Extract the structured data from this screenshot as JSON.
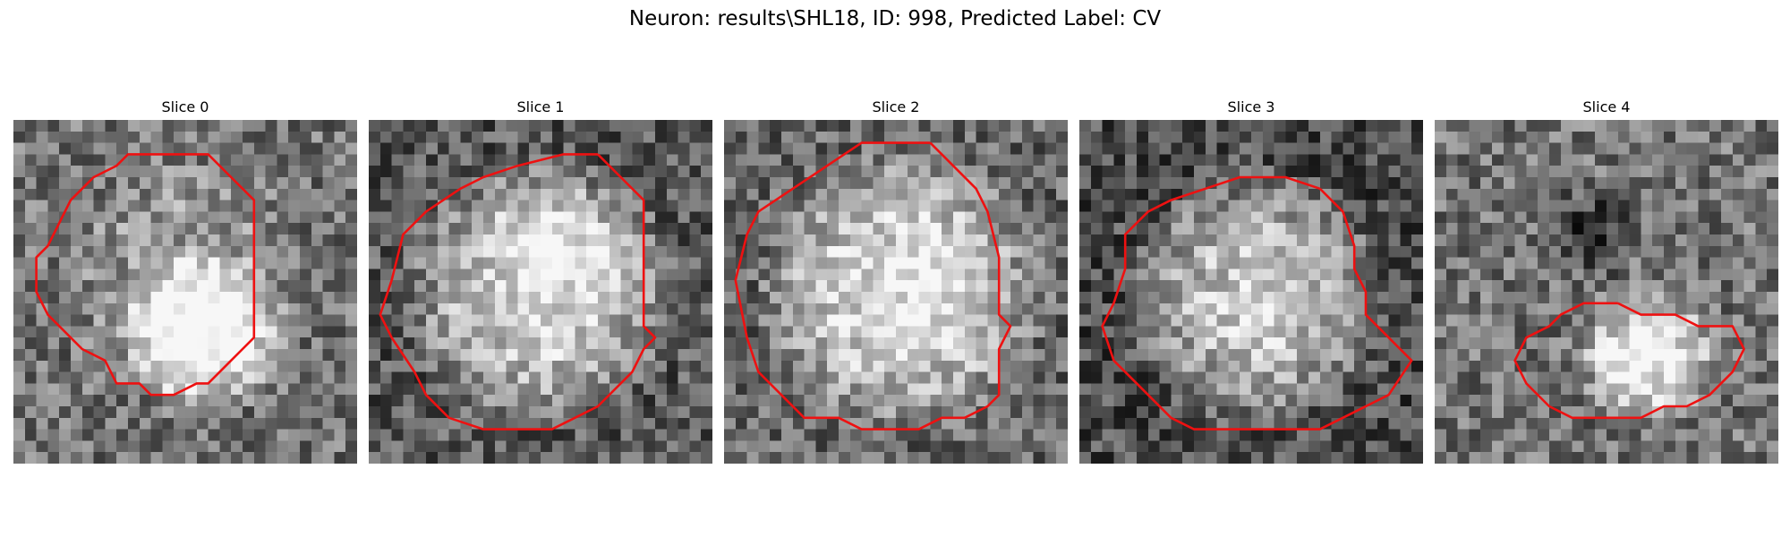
{
  "title": "Neuron: results\\SHL18, ID: 998, Predicted Label: CV",
  "slices": [
    {
      "label": "Slice 0",
      "outline": [
        [
          15,
          3
        ],
        [
          17,
          3
        ],
        [
          19,
          5
        ],
        [
          21,
          7
        ],
        [
          21,
          10
        ],
        [
          21,
          19
        ],
        [
          20,
          20
        ],
        [
          17,
          23
        ],
        [
          16,
          23
        ],
        [
          14,
          24
        ],
        [
          12,
          24
        ],
        [
          11,
          23
        ],
        [
          9,
          23
        ],
        [
          8,
          21
        ],
        [
          6,
          20
        ],
        [
          3,
          17
        ],
        [
          2,
          15
        ],
        [
          2,
          12
        ],
        [
          3,
          11
        ],
        [
          4,
          9
        ],
        [
          5,
          7
        ],
        [
          6,
          6
        ],
        [
          7,
          5
        ],
        [
          9,
          4
        ],
        [
          10,
          3
        ],
        [
          12,
          3
        ],
        [
          15,
          3
        ]
      ],
      "blobs": [
        [
          0.55,
          0.62,
          0.26,
          0.9
        ],
        [
          0.5,
          0.45,
          0.38,
          0.3
        ]
      ],
      "base": 0.45
    },
    {
      "label": "Slice 1",
      "outline": [
        [
          20,
          3
        ],
        [
          22,
          5
        ],
        [
          24,
          7
        ],
        [
          24,
          15
        ],
        [
          24,
          18
        ],
        [
          25,
          19
        ],
        [
          24,
          20
        ],
        [
          23,
          22
        ],
        [
          20,
          25
        ],
        [
          18,
          26
        ],
        [
          16,
          27
        ],
        [
          13,
          27
        ],
        [
          10,
          27
        ],
        [
          7,
          26
        ],
        [
          5,
          24
        ],
        [
          4,
          22
        ],
        [
          2,
          19
        ],
        [
          1,
          17
        ],
        [
          2,
          14
        ],
        [
          3,
          10
        ],
        [
          5,
          8
        ],
        [
          8,
          6
        ],
        [
          10,
          5
        ],
        [
          13,
          4
        ],
        [
          17,
          3
        ],
        [
          20,
          3
        ]
      ],
      "blobs": [
        [
          0.5,
          0.5,
          0.42,
          0.85
        ],
        [
          0.55,
          0.35,
          0.2,
          0.3
        ]
      ],
      "base": 0.35
    },
    {
      "label": "Slice 2",
      "outline": [
        [
          18,
          2
        ],
        [
          20,
          4
        ],
        [
          22,
          6
        ],
        [
          23,
          8
        ],
        [
          24,
          12
        ],
        [
          24,
          17
        ],
        [
          25,
          18
        ],
        [
          24,
          20
        ],
        [
          24,
          24
        ],
        [
          23,
          25
        ],
        [
          21,
          26
        ],
        [
          19,
          26
        ],
        [
          17,
          27
        ],
        [
          14,
          27
        ],
        [
          12,
          27
        ],
        [
          10,
          26
        ],
        [
          7,
          26
        ],
        [
          5,
          24
        ],
        [
          3,
          22
        ],
        [
          2,
          19
        ],
        [
          1,
          14
        ],
        [
          2,
          10
        ],
        [
          3,
          8
        ],
        [
          6,
          6
        ],
        [
          9,
          4
        ],
        [
          12,
          2
        ],
        [
          15,
          2
        ],
        [
          18,
          2
        ]
      ],
      "blobs": [
        [
          0.52,
          0.5,
          0.44,
          0.85
        ]
      ],
      "base": 0.4
    },
    {
      "label": "Slice 3",
      "outline": [
        [
          21,
          6
        ],
        [
          23,
          8
        ],
        [
          24,
          11
        ],
        [
          24,
          13
        ],
        [
          25,
          15
        ],
        [
          25,
          17
        ],
        [
          27,
          19
        ],
        [
          29,
          21
        ],
        [
          27,
          24
        ],
        [
          25,
          25
        ],
        [
          23,
          26
        ],
        [
          21,
          27
        ],
        [
          18,
          27
        ],
        [
          14,
          27
        ],
        [
          10,
          27
        ],
        [
          8,
          26
        ],
        [
          6,
          24
        ],
        [
          3,
          21
        ],
        [
          2,
          18
        ],
        [
          3,
          16
        ],
        [
          4,
          13
        ],
        [
          4,
          10
        ],
        [
          6,
          8
        ],
        [
          8,
          7
        ],
        [
          11,
          6
        ],
        [
          14,
          5
        ],
        [
          18,
          5
        ],
        [
          21,
          6
        ]
      ],
      "blobs": [
        [
          0.52,
          0.52,
          0.4,
          0.85
        ]
      ],
      "base": 0.3
    },
    {
      "label": "Slice 4",
      "outline": [
        [
          16,
          16
        ],
        [
          18,
          17
        ],
        [
          21,
          17
        ],
        [
          23,
          18
        ],
        [
          26,
          18
        ],
        [
          27,
          20
        ],
        [
          26,
          22
        ],
        [
          24,
          24
        ],
        [
          22,
          25
        ],
        [
          20,
          25
        ],
        [
          18,
          26
        ],
        [
          15,
          26
        ],
        [
          12,
          26
        ],
        [
          10,
          25
        ],
        [
          8,
          23
        ],
        [
          7,
          21
        ],
        [
          8,
          19
        ],
        [
          10,
          18
        ],
        [
          11,
          17
        ],
        [
          13,
          16
        ],
        [
          16,
          16
        ]
      ],
      "blobs": [
        [
          0.62,
          0.68,
          0.22,
          0.85
        ],
        [
          0.45,
          0.32,
          0.16,
          -0.35
        ]
      ],
      "base": 0.45
    }
  ]
}
